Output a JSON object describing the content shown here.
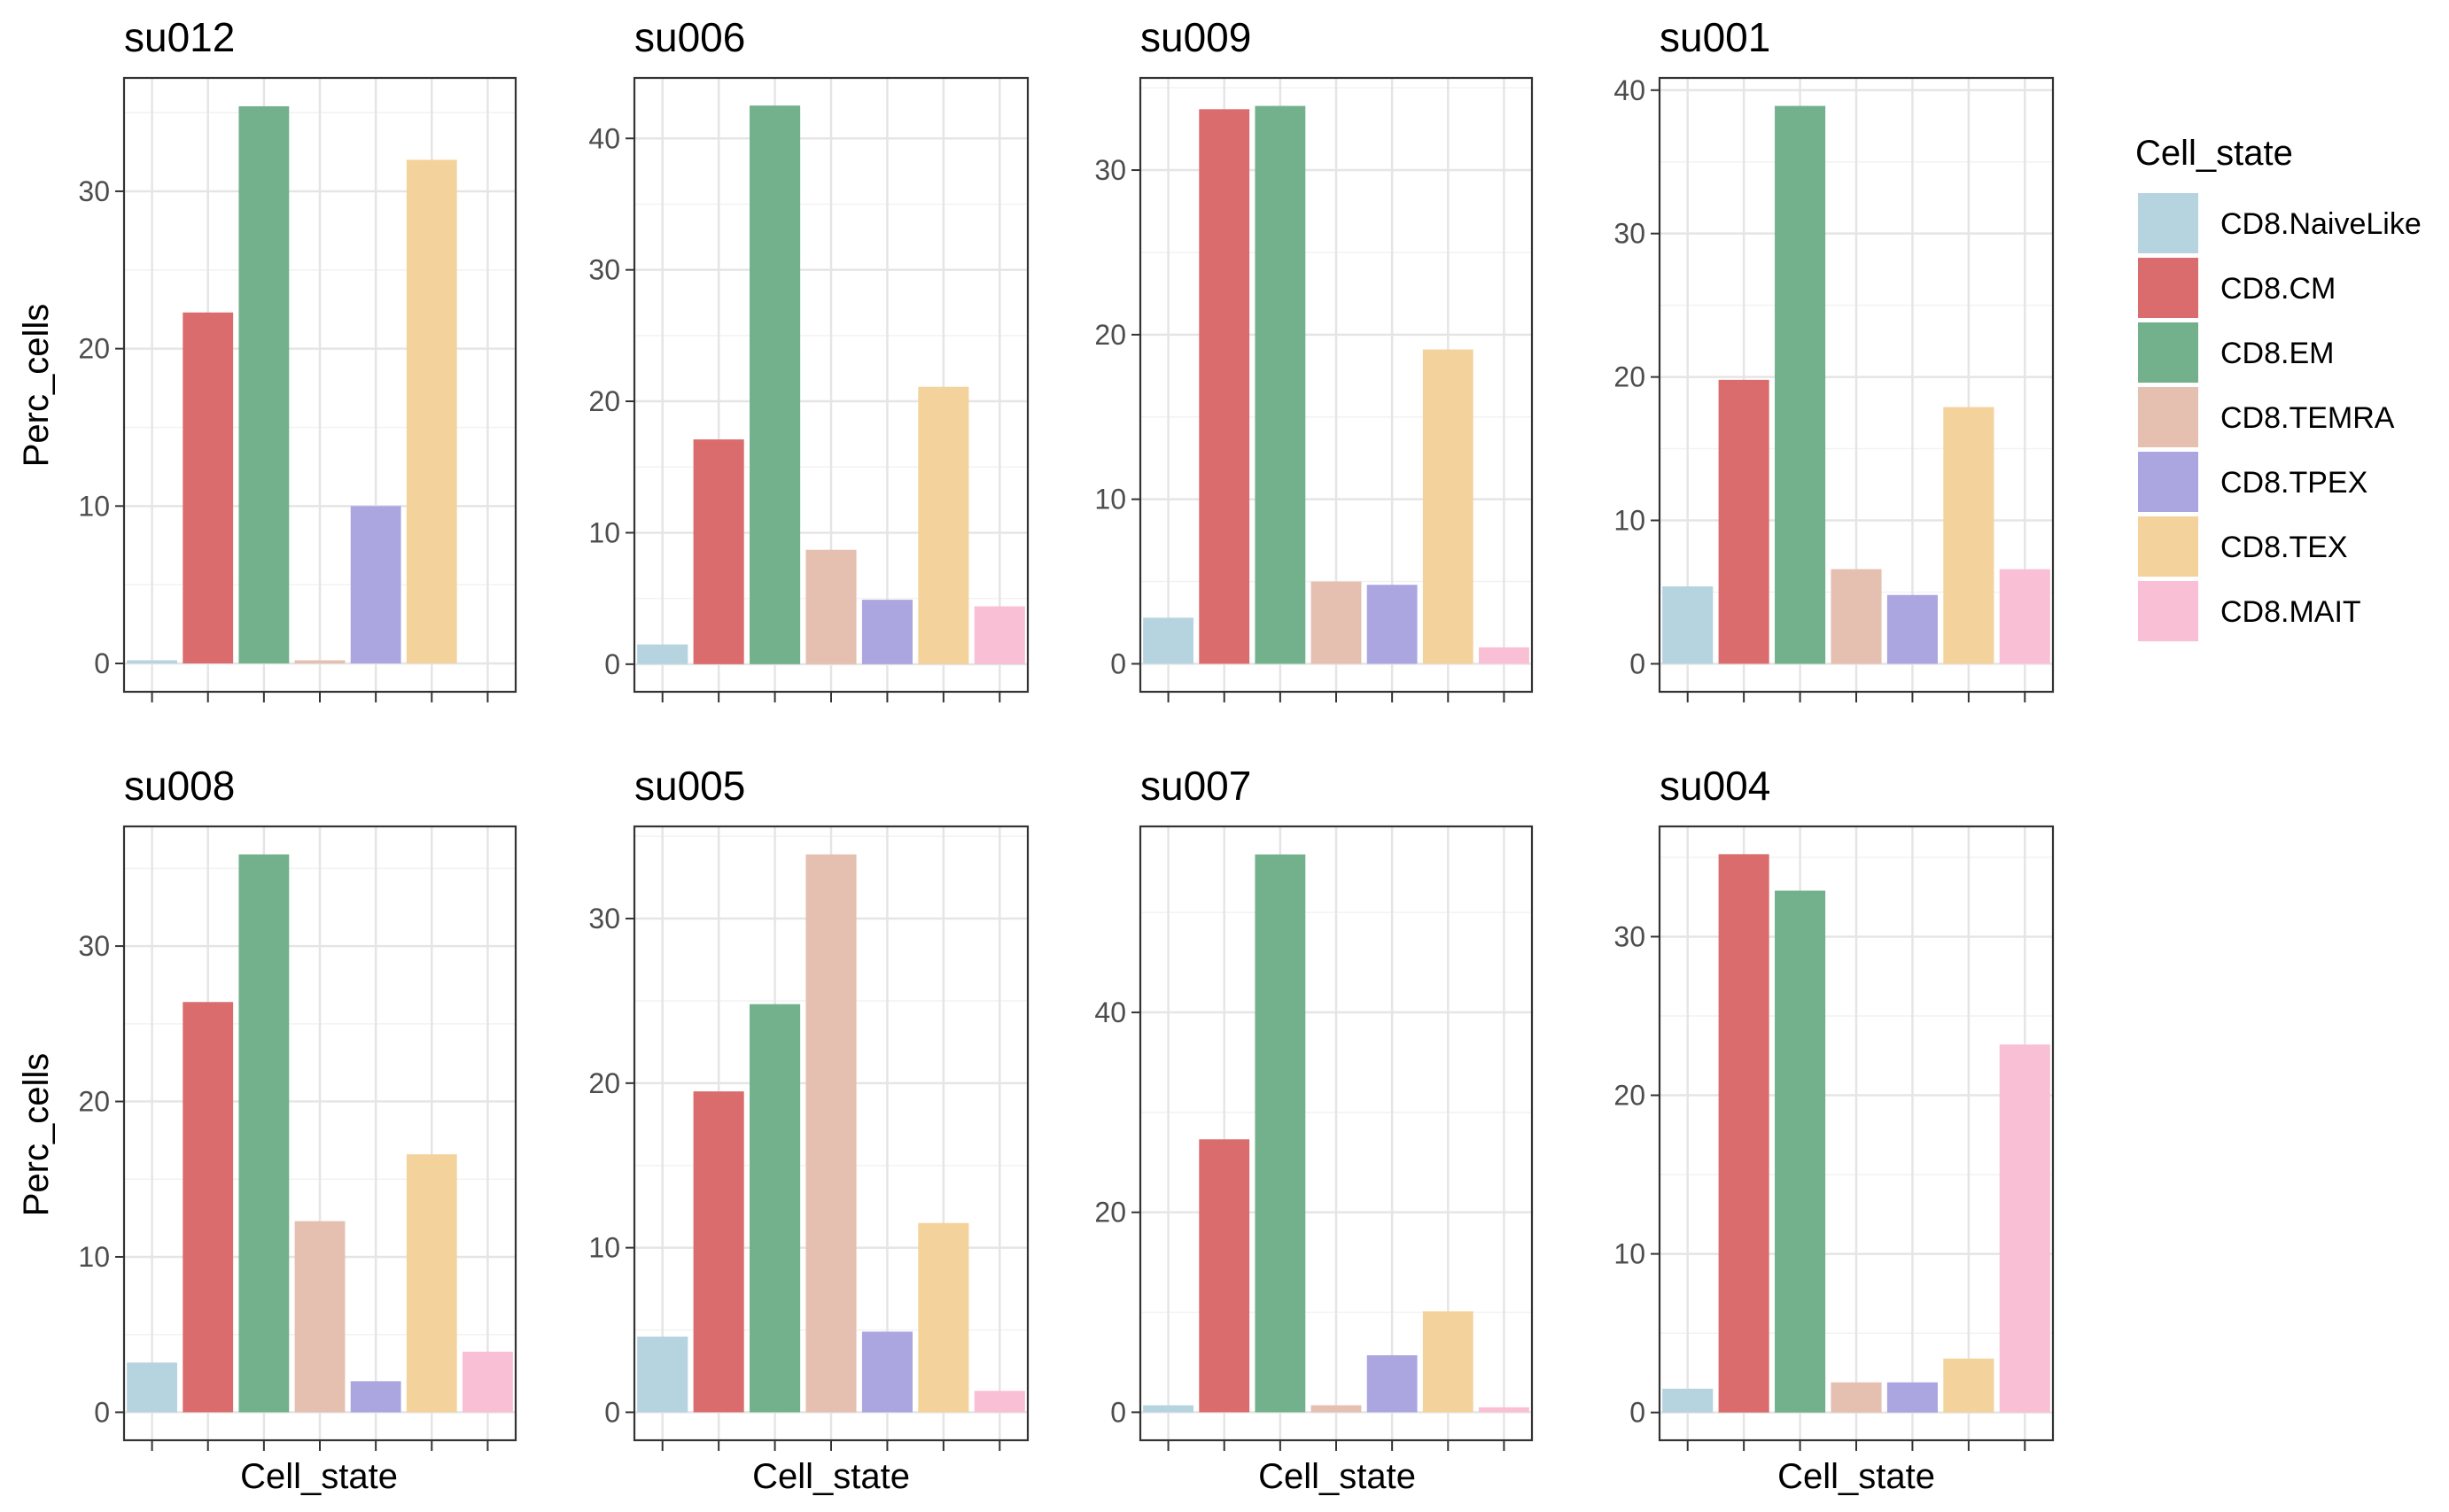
{
  "figure": {
    "y_axis_title": "Perc_cells",
    "x_axis_title": "Cell_state"
  },
  "legend": {
    "title": "Cell_state",
    "items": [
      {
        "label": "CD8.NaiveLike",
        "color": "#B6D3E0"
      },
      {
        "label": "CD8.CM",
        "color": "#DB6C6D"
      },
      {
        "label": "CD8.EM",
        "color": "#72B18B"
      },
      {
        "label": "CD8.TEMRA",
        "color": "#E5BFB0"
      },
      {
        "label": "CD8.TPEX",
        "color": "#ABA5E0"
      },
      {
        "label": "CD8.TEX",
        "color": "#F3D29C"
      },
      {
        "label": "CD8.MAIT",
        "color": "#F9BFD4"
      }
    ]
  },
  "chart_data": [
    {
      "type": "bar",
      "title": "su012",
      "categories": [
        "CD8.NaiveLike",
        "CD8.CM",
        "CD8.EM",
        "CD8.TEMRA",
        "CD8.TPEX",
        "CD8.TEX",
        "CD8.MAIT"
      ],
      "values": [
        0.2,
        22.3,
        35.4,
        0.2,
        10.0,
        32.0,
        0
      ],
      "ylim": [
        -1.8,
        37.2
      ],
      "yticks": [
        0,
        10,
        20,
        30
      ]
    },
    {
      "type": "bar",
      "title": "su006",
      "categories": [
        "CD8.NaiveLike",
        "CD8.CM",
        "CD8.EM",
        "CD8.TEMRA",
        "CD8.TPEX",
        "CD8.TEX",
        "CD8.MAIT"
      ],
      "values": [
        1.5,
        17.1,
        42.5,
        8.7,
        4.9,
        21.1,
        4.4
      ],
      "ylim": [
        -2.1,
        44.6
      ],
      "yticks": [
        0,
        10,
        20,
        30,
        40
      ]
    },
    {
      "type": "bar",
      "title": "su009",
      "categories": [
        "CD8.NaiveLike",
        "CD8.CM",
        "CD8.EM",
        "CD8.TEMRA",
        "CD8.TPEX",
        "CD8.TEX",
        "CD8.MAIT"
      ],
      "values": [
        2.8,
        33.7,
        33.9,
        5.0,
        4.8,
        19.1,
        1.0
      ],
      "ylim": [
        -1.7,
        35.6
      ],
      "yticks": [
        0,
        10,
        20,
        30
      ]
    },
    {
      "type": "bar",
      "title": "su001",
      "categories": [
        "CD8.NaiveLike",
        "CD8.CM",
        "CD8.EM",
        "CD8.TEMRA",
        "CD8.TPEX",
        "CD8.TEX",
        "CD8.MAIT"
      ],
      "values": [
        5.4,
        19.8,
        38.9,
        6.6,
        4.8,
        17.9,
        6.6
      ],
      "ylim": [
        -1.95,
        40.85
      ],
      "yticks": [
        0,
        10,
        20,
        30,
        40
      ]
    },
    {
      "type": "bar",
      "title": "su008",
      "categories": [
        "CD8.NaiveLike",
        "CD8.CM",
        "CD8.EM",
        "CD8.TEMRA",
        "CD8.TPEX",
        "CD8.TEX",
        "CD8.MAIT"
      ],
      "values": [
        3.2,
        26.4,
        35.9,
        12.3,
        2.0,
        16.6,
        3.9
      ],
      "ylim": [
        -1.8,
        37.7
      ],
      "yticks": [
        0,
        10,
        20,
        30
      ]
    },
    {
      "type": "bar",
      "title": "su005",
      "categories": [
        "CD8.NaiveLike",
        "CD8.CM",
        "CD8.EM",
        "CD8.TEMRA",
        "CD8.TPEX",
        "CD8.TEX",
        "CD8.MAIT"
      ],
      "values": [
        4.6,
        19.5,
        24.8,
        33.9,
        4.9,
        11.5,
        1.3
      ],
      "ylim": [
        -1.7,
        35.6
      ],
      "yticks": [
        0,
        10,
        20,
        30
      ]
    },
    {
      "type": "bar",
      "title": "su007",
      "categories": [
        "CD8.NaiveLike",
        "CD8.CM",
        "CD8.EM",
        "CD8.TEMRA",
        "CD8.TPEX",
        "CD8.TEX",
        "CD8.MAIT"
      ],
      "values": [
        0.7,
        27.3,
        55.8,
        0.7,
        5.7,
        10.1,
        0.5
      ],
      "ylim": [
        -2.8,
        58.6
      ],
      "yticks": [
        0,
        20,
        40
      ]
    },
    {
      "type": "bar",
      "title": "su004",
      "categories": [
        "CD8.NaiveLike",
        "CD8.CM",
        "CD8.EM",
        "CD8.TEMRA",
        "CD8.TPEX",
        "CD8.TEX",
        "CD8.MAIT"
      ],
      "values": [
        1.5,
        35.2,
        32.9,
        1.9,
        1.9,
        3.4,
        23.2
      ],
      "ylim": [
        -1.75,
        36.95
      ],
      "yticks": [
        0,
        10,
        20,
        30
      ]
    }
  ]
}
